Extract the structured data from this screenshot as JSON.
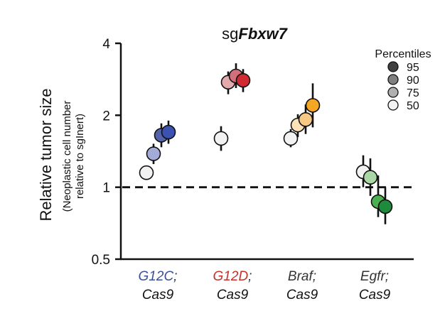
{
  "chart_data": {
    "type": "scatter",
    "title": {
      "prefix": "sg",
      "gene": "Fbxw7"
    },
    "ylabel": "Relative tumor size",
    "ylabel_sub": [
      "(Neoplastic cell number",
      "relative to sgInert)"
    ],
    "y_scale": "log2",
    "ylim": [
      0.5,
      4
    ],
    "yticks": [
      0.5,
      1,
      2,
      4
    ],
    "ytick_labels": [
      "0.5",
      "1",
      "2",
      "4"
    ],
    "reference_line": {
      "y": 1,
      "style": "dashed"
    },
    "legend": {
      "title": "Percentiles",
      "placement": "top-right",
      "entries": [
        {
          "label": "95",
          "shade": "#404040"
        },
        {
          "label": "90",
          "shade": "#808080"
        },
        {
          "label": "75",
          "shade": "#b0b0b0"
        },
        {
          "label": "50",
          "shade": "#f2f2f2"
        }
      ]
    },
    "categories": [
      {
        "line1": "G12C",
        "line1_suffix": ";",
        "line2": "Cas9",
        "line1_color": "#3b4f94",
        "points": [
          {
            "percentile": 50,
            "y": 1.15,
            "lo": 1.08,
            "hi": 1.22,
            "color": "#f2f2f2"
          },
          {
            "percentile": 75,
            "y": 1.38,
            "lo": 1.25,
            "hi": 1.52,
            "color": "#a4abd6"
          },
          {
            "percentile": 90,
            "y": 1.65,
            "lo": 1.47,
            "hi": 1.85,
            "color": "#5563ab"
          },
          {
            "percentile": 95,
            "y": 1.7,
            "lo": 1.52,
            "hi": 1.9,
            "color": "#3b52b0"
          }
        ]
      },
      {
        "line1": "G12D",
        "line1_suffix": ";",
        "line2": "Cas9",
        "line1_color": "#c8302c",
        "points": [
          {
            "percentile": 50,
            "y": 1.6,
            "lo": 1.42,
            "hi": 1.8,
            "color": "#f2f2f2"
          },
          {
            "percentile": 75,
            "y": 2.75,
            "lo": 2.45,
            "hi": 3.05,
            "color": "#e4a9ad"
          },
          {
            "percentile": 90,
            "y": 2.92,
            "lo": 2.6,
            "hi": 3.3,
            "color": "#d1707b"
          },
          {
            "percentile": 95,
            "y": 2.8,
            "lo": 2.5,
            "hi": 3.12,
            "color": "#cf2a32"
          }
        ]
      },
      {
        "line1": "Braf",
        "line1_suffix": ";",
        "line2": "Cas9",
        "line1_color": "#333333",
        "points": [
          {
            "percentile": 50,
            "y": 1.6,
            "lo": 1.47,
            "hi": 1.75,
            "color": "#f2f2f2"
          },
          {
            "percentile": 75,
            "y": 1.82,
            "lo": 1.62,
            "hi": 2.02,
            "color": "#fbe0b8"
          },
          {
            "percentile": 90,
            "y": 1.92,
            "lo": 1.67,
            "hi": 2.22,
            "color": "#f8c985"
          },
          {
            "percentile": 95,
            "y": 2.2,
            "lo": 1.78,
            "hi": 2.72,
            "color": "#f5a623"
          }
        ]
      },
      {
        "line1": "Egfr",
        "line1_suffix": ";",
        "line2": "Cas9",
        "line1_color": "#333333",
        "points": [
          {
            "percentile": 50,
            "y": 1.16,
            "lo": 1.0,
            "hi": 1.36,
            "color": "#f2f2f2"
          },
          {
            "percentile": 75,
            "y": 1.1,
            "lo": 0.92,
            "hi": 1.32,
            "color": "#a9d8a6"
          },
          {
            "percentile": 90,
            "y": 0.87,
            "lo": 0.75,
            "hi": 1.12,
            "color": "#4caf50"
          },
          {
            "percentile": 95,
            "y": 0.83,
            "lo": 0.7,
            "hi": 1.0,
            "color": "#1f8a3b"
          }
        ]
      }
    ]
  }
}
